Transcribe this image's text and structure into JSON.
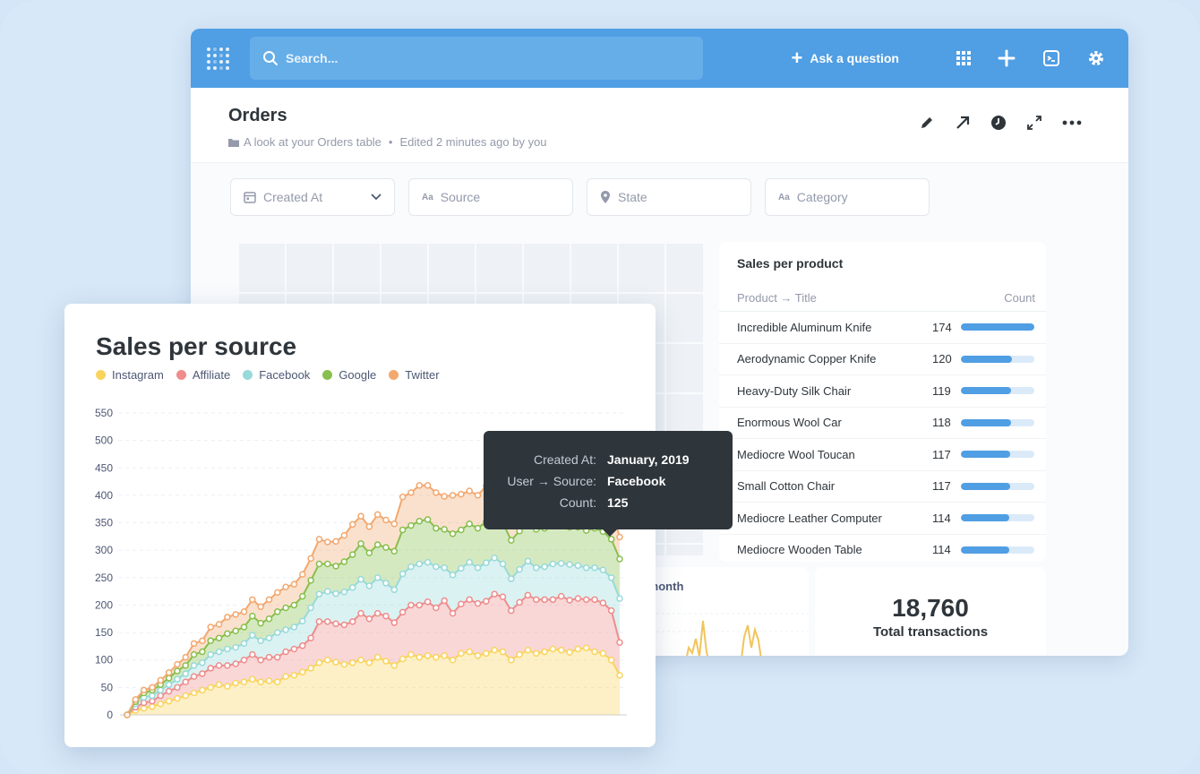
{
  "topbar": {
    "search_placeholder": "Search...",
    "ask_label": "Ask a question"
  },
  "header": {
    "title": "Orders",
    "collection": "A look at your Orders table",
    "edited": "Edited 2 minutes ago by you"
  },
  "filters": [
    {
      "label": "Created At",
      "icon": "calendar-icon"
    },
    {
      "label": "Source",
      "icon": "text-icon"
    },
    {
      "label": "State",
      "icon": "location-pin-icon"
    },
    {
      "label": "Category",
      "icon": "text-icon"
    }
  ],
  "sales_per_product": {
    "title": "Sales per product",
    "col_product": "Product → Title",
    "col_count": "Count",
    "max": 174,
    "rows": [
      {
        "name": "Incredible Aluminum Knife",
        "count": 174
      },
      {
        "name": "Aerodynamic Copper Knife",
        "count": 120
      },
      {
        "name": "Heavy-Duty Silk Chair",
        "count": 119
      },
      {
        "name": "Enormous Wool Car",
        "count": 118
      },
      {
        "name": "Mediocre Wool Toucan",
        "count": 117
      },
      {
        "name": "Small Cotton Chair",
        "count": 117
      },
      {
        "name": "Mediocre Leather Computer",
        "count": 114
      },
      {
        "name": "Mediocre Wooden Table",
        "count": 114
      }
    ]
  },
  "month_card": {
    "title": "r month"
  },
  "total_card": {
    "value": "18,760",
    "label": "Total transactions"
  },
  "tooltip": {
    "rows": [
      {
        "key": "Created At:",
        "value": "January, 2019"
      },
      {
        "key": "User → Source:",
        "value": "Facebook"
      },
      {
        "key": "Count:",
        "value": "125"
      }
    ]
  },
  "chart_data": {
    "type": "area",
    "title": "Sales per source",
    "stacked": true,
    "ylim": [
      0,
      550
    ],
    "yticks": [
      0,
      50,
      100,
      150,
      200,
      250,
      300,
      350,
      400,
      450,
      500,
      550
    ],
    "grid": true,
    "legend_placement": "top-left",
    "series": [
      {
        "name": "Instagram",
        "color": "#f9d45c",
        "values": [
          0,
          8,
          12,
          15,
          20,
          25,
          30,
          35,
          40,
          45,
          50,
          55,
          52,
          58,
          60,
          65,
          60,
          62,
          60,
          70,
          72,
          78,
          85,
          95,
          100,
          96,
          92,
          95,
          100,
          95,
          105,
          98,
          90,
          102,
          110,
          105,
          108,
          105,
          108,
          100,
          112,
          115,
          108,
          112,
          118,
          115,
          100,
          110,
          118,
          112,
          115,
          120,
          118,
          114,
          120,
          122,
          115,
          112,
          100,
          72
        ]
      },
      {
        "name": "Affiliate",
        "color": "#ef8c8c",
        "values": [
          0,
          6,
          10,
          10,
          15,
          18,
          20,
          25,
          30,
          30,
          35,
          35,
          38,
          35,
          40,
          45,
          40,
          43,
          45,
          45,
          48,
          48,
          55,
          75,
          70,
          70,
          72,
          75,
          85,
          80,
          80,
          82,
          78,
          85,
          90,
          95,
          98,
          90,
          100,
          85,
          90,
          95,
          95,
          95,
          102,
          100,
          90,
          95,
          100,
          98,
          95,
          90,
          98,
          95,
          92,
          88,
          95,
          92,
          90,
          60
        ]
      },
      {
        "name": "Facebook",
        "color": "#98d9d9",
        "values": [
          0,
          6,
          10,
          10,
          10,
          12,
          15,
          15,
          20,
          20,
          25,
          25,
          30,
          30,
          30,
          35,
          35,
          35,
          45,
          40,
          40,
          45,
          55,
          50,
          55,
          55,
          60,
          62,
          62,
          60,
          65,
          60,
          60,
          70,
          70,
          75,
          72,
          75,
          60,
          70,
          65,
          68,
          65,
          70,
          66,
          60,
          58,
          60,
          62,
          58,
          60,
          65,
          60,
          65,
          60,
          58,
          58,
          60,
          60,
          80
        ]
      },
      {
        "name": "Google",
        "color": "#88bf4d",
        "values": [
          0,
          4,
          8,
          10,
          10,
          12,
          15,
          15,
          20,
          20,
          25,
          25,
          28,
          30,
          30,
          35,
          32,
          35,
          38,
          40,
          40,
          45,
          50,
          55,
          50,
          50,
          55,
          60,
          65,
          60,
          60,
          65,
          70,
          80,
          75,
          78,
          78,
          70,
          70,
          75,
          70,
          70,
          72,
          75,
          80,
          75,
          70,
          70,
          72,
          70,
          70,
          72,
          70,
          68,
          70,
          68,
          72,
          70,
          70,
          72
        ]
      },
      {
        "name": "Twitter",
        "color": "#f2a86f",
        "values": [
          0,
          4,
          5,
          5,
          8,
          10,
          12,
          15,
          20,
          20,
          25,
          25,
          30,
          30,
          28,
          30,
          30,
          35,
          35,
          38,
          38,
          40,
          40,
          45,
          40,
          45,
          48,
          55,
          50,
          48,
          55,
          50,
          50,
          60,
          60,
          65,
          62,
          65,
          60,
          70,
          65,
          60,
          60,
          65,
          60,
          55,
          55,
          58,
          60,
          52,
          55,
          58,
          55,
          58,
          60,
          58,
          55,
          58,
          55,
          40
        ]
      }
    ]
  }
}
